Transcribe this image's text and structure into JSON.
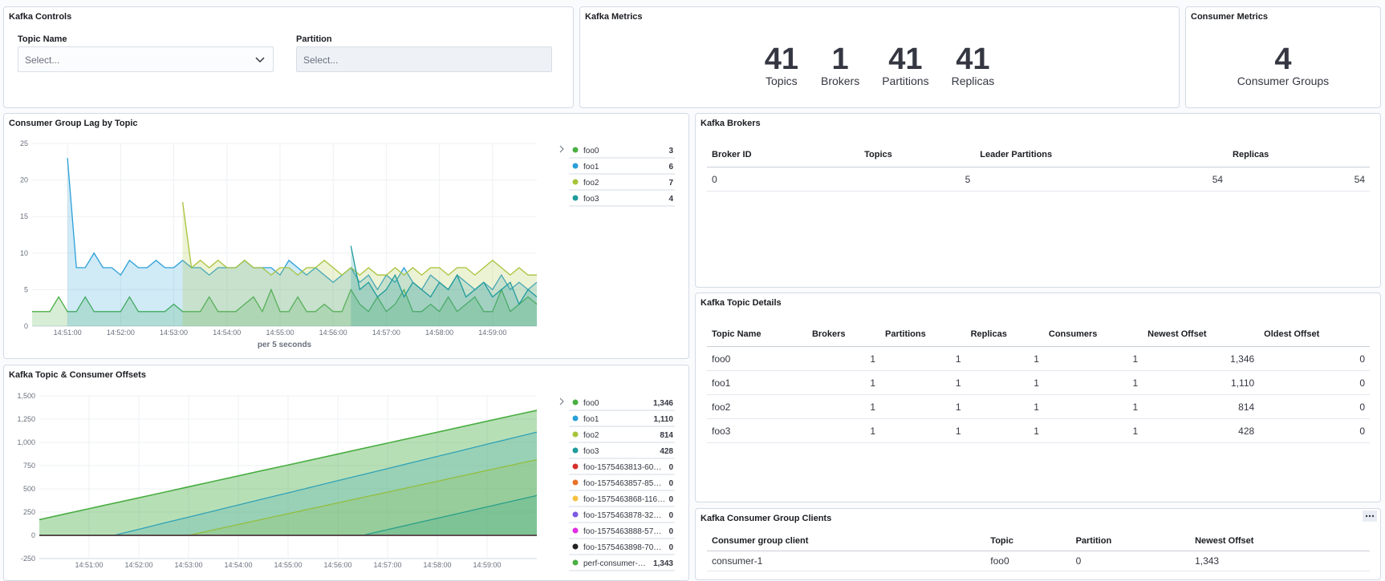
{
  "controls": {
    "title": "Kafka Controls",
    "topic_label": "Topic Name",
    "topic_placeholder": "Select...",
    "partition_label": "Partition",
    "partition_placeholder": "Select..."
  },
  "metrics": {
    "title": "Kafka Metrics",
    "items": [
      {
        "value": "41",
        "label": "Topics"
      },
      {
        "value": "1",
        "label": "Brokers"
      },
      {
        "value": "41",
        "label": "Partitions"
      },
      {
        "value": "41",
        "label": "Replicas"
      }
    ]
  },
  "consumer_metrics": {
    "title": "Consumer Metrics",
    "value": "4",
    "label": "Consumer Groups"
  },
  "brokers_table": {
    "title": "Kafka Brokers",
    "headers": [
      "Broker ID",
      "Topics",
      "Leader Partitions",
      "Replicas"
    ],
    "rows": [
      [
        "0",
        "5",
        "54",
        "54"
      ]
    ]
  },
  "topic_table": {
    "title": "Kafka Topic Details",
    "headers": [
      "Topic Name",
      "Brokers",
      "Partitions",
      "Replicas",
      "Consumers",
      "Newest Offset",
      "Oldest Offset"
    ],
    "rows": [
      [
        "foo0",
        "1",
        "1",
        "1",
        "1",
        "1,346",
        "0"
      ],
      [
        "foo1",
        "1",
        "1",
        "1",
        "1",
        "1,110",
        "0"
      ],
      [
        "foo2",
        "1",
        "1",
        "1",
        "1",
        "814",
        "0"
      ],
      [
        "foo3",
        "1",
        "1",
        "1",
        "1",
        "428",
        "0"
      ]
    ]
  },
  "clients_table": {
    "title": "Kafka Consumer Group Clients",
    "headers": [
      "Consumer group client",
      "Topic",
      "Partition",
      "Newest Offset"
    ],
    "rows": [
      [
        "consumer-1",
        "foo0",
        "0",
        "1,343"
      ]
    ]
  },
  "chart_data": [
    {
      "type": "area",
      "title": "Consumer Group Lag by Topic",
      "x_label": "per 5 seconds",
      "grid": true,
      "x": [
        "14:50:20",
        "14:50:30",
        "14:50:40",
        "14:50:50",
        "14:51:00",
        "14:51:10",
        "14:51:20",
        "14:51:30",
        "14:51:40",
        "14:51:50",
        "14:52:00",
        "14:52:10",
        "14:52:20",
        "14:52:30",
        "14:52:40",
        "14:52:50",
        "14:53:00",
        "14:53:10",
        "14:53:20",
        "14:53:30",
        "14:53:40",
        "14:53:50",
        "14:54:00",
        "14:54:10",
        "14:54:20",
        "14:54:30",
        "14:54:40",
        "14:54:50",
        "14:55:00",
        "14:55:10",
        "14:55:20",
        "14:55:30",
        "14:55:40",
        "14:55:50",
        "14:56:00",
        "14:56:10",
        "14:56:20",
        "14:56:30",
        "14:56:40",
        "14:56:50",
        "14:57:00",
        "14:57:10",
        "14:57:20",
        "14:57:30",
        "14:57:40",
        "14:57:50",
        "14:58:00",
        "14:58:10",
        "14:58:20",
        "14:58:30",
        "14:58:40",
        "14:58:50",
        "14:59:00",
        "14:59:10",
        "14:59:20",
        "14:59:30",
        "14:59:40",
        "14:59:50"
      ],
      "xlim": [
        "14:50:20",
        "14:59:50"
      ],
      "xticks": [
        "14:51:00",
        "14:52:00",
        "14:53:00",
        "14:54:00",
        "14:55:00",
        "14:56:00",
        "14:57:00",
        "14:58:00",
        "14:59:00"
      ],
      "ylim": [
        0,
        25
      ],
      "yticks": [
        0,
        5,
        10,
        15,
        20,
        25
      ],
      "series": [
        {
          "name": "foo0",
          "color": "#4aae43",
          "legend_value": 3,
          "values": [
            2,
            2,
            2,
            4,
            2,
            2,
            4,
            2,
            2,
            2,
            2,
            4,
            2,
            2,
            2,
            2,
            3,
            2,
            2,
            2,
            4,
            2,
            2,
            2,
            3,
            4,
            2,
            5,
            2,
            2,
            4,
            2,
            2,
            3,
            2,
            2,
            5,
            3,
            2,
            4,
            2,
            3,
            5,
            2,
            2,
            3,
            2,
            4,
            2,
            3,
            4,
            2,
            2,
            5,
            2,
            3,
            4,
            3
          ]
        },
        {
          "name": "foo1",
          "color": "#2a9fd8",
          "legend_value": 6,
          "values": [
            null,
            null,
            null,
            null,
            23,
            8,
            8,
            10,
            8,
            8,
            7,
            9,
            8,
            8,
            9,
            8,
            8,
            9,
            8,
            8,
            7,
            8,
            8,
            8,
            9,
            8,
            8,
            8,
            7,
            9,
            8,
            7,
            8,
            7,
            6,
            7,
            8,
            6,
            7,
            5,
            7,
            6,
            8,
            6,
            5,
            7,
            6,
            5,
            7,
            6,
            5,
            6,
            5,
            7,
            5,
            6,
            5,
            6
          ]
        },
        {
          "name": "foo2",
          "color": "#a7c33b",
          "legend_value": 7,
          "values": [
            null,
            null,
            null,
            null,
            null,
            null,
            null,
            null,
            null,
            null,
            null,
            null,
            null,
            null,
            null,
            null,
            null,
            17,
            8,
            9,
            8,
            9,
            8,
            8,
            9,
            8,
            8,
            7,
            8,
            8,
            7,
            8,
            8,
            9,
            8,
            7,
            8,
            7,
            8,
            7,
            7,
            8,
            7,
            8,
            7,
            8,
            8,
            7,
            8,
            8,
            7,
            8,
            9,
            8,
            7,
            8,
            7,
            7
          ]
        },
        {
          "name": "foo3",
          "color": "#1f9b9c",
          "legend_value": 4,
          "values": [
            null,
            null,
            null,
            null,
            null,
            null,
            null,
            null,
            null,
            null,
            null,
            null,
            null,
            null,
            null,
            null,
            null,
            null,
            null,
            null,
            null,
            null,
            null,
            null,
            null,
            null,
            null,
            null,
            null,
            null,
            null,
            null,
            null,
            null,
            null,
            null,
            11,
            5,
            6,
            4,
            5,
            7,
            4,
            6,
            5,
            4,
            6,
            5,
            7,
            4,
            5,
            6,
            4,
            5,
            6,
            3,
            5,
            4
          ]
        }
      ]
    },
    {
      "type": "area",
      "title": "Kafka Topic & Consumer Offsets",
      "grid": true,
      "x": [
        "14:50:00",
        "14:50:30",
        "14:51:00",
        "14:51:30",
        "14:52:00",
        "14:52:30",
        "14:53:00",
        "14:53:30",
        "14:54:00",
        "14:54:30",
        "14:55:00",
        "14:55:30",
        "14:56:00",
        "14:56:30",
        "14:57:00",
        "14:57:30",
        "14:58:00",
        "14:58:30",
        "14:59:00",
        "14:59:30",
        "15:00:00"
      ],
      "xlim": [
        "14:50:00",
        "15:00:00"
      ],
      "xticks": [
        "14:51:00",
        "14:52:00",
        "14:53:00",
        "14:54:00",
        "14:55:00",
        "14:56:00",
        "14:57:00",
        "14:58:00",
        "14:59:00"
      ],
      "ylim": [
        -250,
        1500
      ],
      "yticks": [
        -250,
        0,
        250,
        500,
        750,
        {
          "value": 1000,
          "label": "1,000"
        },
        {
          "value": 1250,
          "label": "1,250"
        },
        {
          "value": 1500,
          "label": "1,500"
        }
      ],
      "series": [
        {
          "name": "foo0",
          "color": "#4aae43",
          "legend_value": {
            "value": 1346,
            "label": "1,346"
          },
          "values": [
            170,
            229,
            288,
            347,
            405,
            464,
            523,
            582,
            641,
            700,
            758,
            817,
            876,
            935,
            994,
            1052,
            1111,
            1170,
            1229,
            1288,
            1346
          ]
        },
        {
          "name": "foo1",
          "color": "#2a9fd8",
          "legend_value": {
            "value": 1110,
            "label": "1,110"
          },
          "values": [
            0,
            0,
            0,
            0,
            65,
            131,
            196,
            261,
            327,
            392,
            457,
            522,
            588,
            653,
            718,
            784,
            849,
            914,
            980,
            1045,
            1110
          ]
        },
        {
          "name": "foo2",
          "color": "#a7c33b",
          "legend_value": 814,
          "values": [
            0,
            0,
            0,
            0,
            0,
            0,
            0,
            58,
            116,
            174,
            233,
            291,
            349,
            407,
            465,
            523,
            581,
            640,
            698,
            756,
            814
          ]
        },
        {
          "name": "foo3",
          "color": "#1f9b9c",
          "legend_value": 428,
          "values": [
            0,
            0,
            0,
            0,
            0,
            0,
            0,
            0,
            0,
            0,
            0,
            0,
            0,
            0,
            61,
            122,
            183,
            245,
            306,
            367,
            428
          ]
        },
        {
          "name": "foo-1575463813-60…",
          "color": "#d6302c",
          "legend_value": 0,
          "values": [
            0,
            0,
            0,
            0,
            0,
            0,
            0,
            0,
            0,
            0,
            0,
            0,
            0,
            0,
            0,
            0,
            0,
            0,
            0,
            0,
            0
          ]
        },
        {
          "name": "foo-1575463857-85…",
          "color": "#e8742b",
          "legend_value": 0,
          "values": [
            0,
            0,
            0,
            0,
            0,
            0,
            0,
            0,
            0,
            0,
            0,
            0,
            0,
            0,
            0,
            0,
            0,
            0,
            0,
            0,
            0
          ]
        },
        {
          "name": "foo-1575463868-116…",
          "color": "#f6c142",
          "legend_value": 0,
          "values": [
            0,
            0,
            0,
            0,
            0,
            0,
            0,
            0,
            0,
            0,
            0,
            0,
            0,
            0,
            0,
            0,
            0,
            0,
            0,
            0,
            0
          ]
        },
        {
          "name": "foo-1575463878-32…",
          "color": "#7d5ae0",
          "legend_value": 0,
          "values": [
            0,
            0,
            0,
            0,
            0,
            0,
            0,
            0,
            0,
            0,
            0,
            0,
            0,
            0,
            0,
            0,
            0,
            0,
            0,
            0,
            0
          ]
        },
        {
          "name": "foo-1575463888-57…",
          "color": "#e22de0",
          "legend_value": 0,
          "values": [
            0,
            0,
            0,
            0,
            0,
            0,
            0,
            0,
            0,
            0,
            0,
            0,
            0,
            0,
            0,
            0,
            0,
            0,
            0,
            0,
            0
          ]
        },
        {
          "name": "foo-1575463898-70…",
          "color": "#222222",
          "legend_value": 0,
          "values": [
            0,
            0,
            0,
            0,
            0,
            0,
            0,
            0,
            0,
            0,
            0,
            0,
            0,
            0,
            0,
            0,
            0,
            0,
            0,
            0,
            0
          ]
        },
        {
          "name": "perf-consumer-…",
          "color": "#4aae43",
          "legend_value": {
            "value": 1343,
            "label": "1,343"
          },
          "values": [
            167,
            226,
            285,
            344,
            402,
            461,
            520,
            579,
            638,
            697,
            755,
            814,
            873,
            932,
            991,
            1049,
            1108,
            1167,
            1226,
            1285,
            1343
          ]
        }
      ]
    }
  ]
}
